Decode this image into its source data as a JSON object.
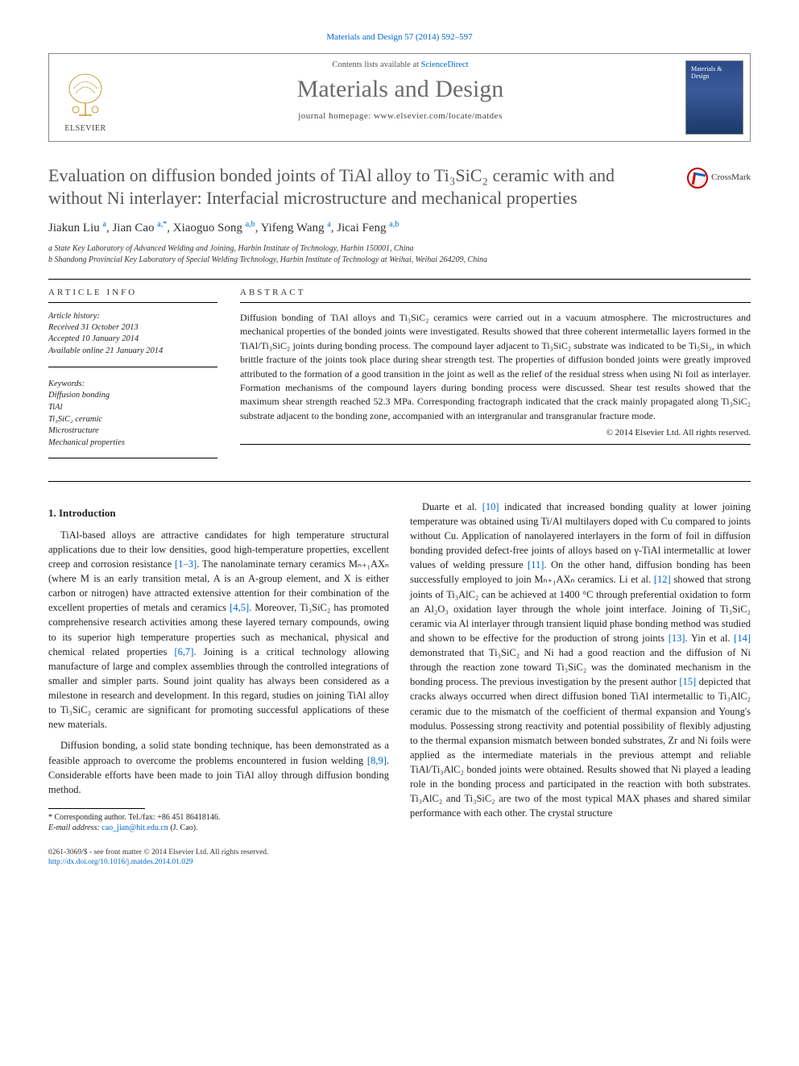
{
  "citation": "Materials and Design 57 (2014) 592–597",
  "header": {
    "contents_prefix": "Contents lists available at ",
    "contents_link": "ScienceDirect",
    "journal": "Materials and Design",
    "homepage_prefix": "journal homepage: ",
    "homepage": "www.elsevier.com/locate/matdes",
    "publisher_label": "ELSEVIER",
    "cover_label": "Materials & Design"
  },
  "crossmark": "CrossMark",
  "title": "Evaluation on diffusion bonded joints of TiAl alloy to Ti₃SiC₂ ceramic with and without Ni interlayer: Interfacial microstructure and mechanical properties",
  "authors_html": "Jiakun Liu <sup>a</sup>, Jian Cao <sup>a,*</sup>, Xiaoguo Song <sup>a,b</sup>, Yifeng Wang <sup>a</sup>, Jicai Feng <sup>a,b</sup>",
  "affiliations": [
    "a State Key Laboratory of Advanced Welding and Joining, Harbin Institute of Technology, Harbin 150001, China",
    "b Shandong Provincial Key Laboratory of Special Welding Technology, Harbin Institute of Technology at Weihai, Weihai 264209, China"
  ],
  "info_head": "ARTICLE INFO",
  "abstract_head": "ABSTRACT",
  "history": {
    "label": "Article history:",
    "received": "Received 31 October 2013",
    "accepted": "Accepted 10 January 2014",
    "online": "Available online 21 January 2014"
  },
  "keywords": {
    "label": "Keywords:",
    "items": [
      "Diffusion bonding",
      "TiAl",
      "Ti₃SiC₂ ceramic",
      "Microstructure",
      "Mechanical properties"
    ]
  },
  "abstract": "Diffusion bonding of TiAl alloys and Ti₃SiC₂ ceramics were carried out in a vacuum atmosphere. The microstructures and mechanical properties of the bonded joints were investigated. Results showed that three coherent intermetallic layers formed in the TiAl/Ti₃SiC₂ joints during bonding process. The compound layer adjacent to Ti₃SiC₂ substrate was indicated to be Ti₅Si₃, in which brittle fracture of the joints took place during shear strength test. The properties of diffusion bonded joints were greatly improved attributed to the formation of a good transition in the joint as well as the relief of the residual stress when using Ni foil as interlayer. Formation mechanisms of the compound layers during bonding process were discussed. Shear test results showed that the maximum shear strength reached 52.3 MPa. Corresponding fractograph indicated that the crack mainly propagated along Ti₃SiC₂ substrate adjacent to the bonding zone, accompanied with an intergranular and transgranular fracture mode.",
  "copyright": "© 2014 Elsevier Ltd. All rights reserved.",
  "section1": {
    "heading": "1. Introduction",
    "p1": "TiAl-based alloys are attractive candidates for high temperature structural applications due to their low densities, good high-temperature properties, excellent creep and corrosion resistance [1–3]. The nanolaminate ternary ceramics Mₙ₊₁AXₙ (where M is an early transition metal, A is an A-group element, and X is either carbon or nitrogen) have attracted extensive attention for their combination of the excellent properties of metals and ceramics [4,5]. Moreover, Ti₃SiC₂ has promoted comprehensive research activities among these layered ternary compounds, owing to its superior high temperature properties such as mechanical, physical and chemical related properties [6,7]. Joining is a critical technology allowing manufacture of large and complex assemblies through the controlled integrations of smaller and simpler parts. Sound joint quality has always been considered as a milestone in research and development. In this regard, studies on joining TiAl alloy to Ti₃SiC₂ ceramic are significant for promoting successful applications of these new materials.",
    "p2": "Diffusion bonding, a solid state bonding technique, has been demonstrated as a feasible approach to overcome the problems encountered in fusion welding [8,9]. Considerable efforts have been made to join TiAl alloy through diffusion bonding method.",
    "p3": "Duarte et al. [10] indicated that increased bonding quality at lower joining temperature was obtained using Ti/Al multilayers doped with Cu compared to joints without Cu. Application of nanolayered interlayers in the form of foil in diffusion bonding provided defect-free joints of alloys based on γ-TiAl intermetallic at lower values of welding pressure [11]. On the other hand, diffusion bonding has been successfully employed to join Mₙ₊₁AXₙ ceramics. Li et al. [12] showed that strong joints of Ti₃AlC₂ can be achieved at 1400 °C through preferential oxidation to form an Al₂O₃ oxidation layer through the whole joint interface. Joining of Ti₃SiC₂ ceramic via Al interlayer through transient liquid phase bonding method was studied and shown to be effective for the production of strong joints [13]. Yin et al. [14] demonstrated that Ti₃SiC₂ and Ni had a good reaction and the diffusion of Ni through the reaction zone toward Ti₃SiC₂ was the dominated mechanism in the bonding process. The previous investigation by the present author [15] depicted that cracks always occurred when direct diffusion boned TiAl intermetallic to Ti₃AlC₂ ceramic due to the mismatch of the coefficient of thermal expansion and Young's modulus. Possessing strong reactivity and potential possibility of flexibly adjusting to the thermal expansion mismatch between bonded substrates, Zr and Ni foils were applied as the intermediate materials in the previous attempt and reliable TiAl/Ti₃AlC₂ bonded joints were obtained. Results showed that Ni played a leading role in the bonding process and participated in the reaction with both substrates. Ti₃AlC₂ and Ti₃SiC₂ are two of the most typical MAX phases and shared similar performance with each other. The crystal structure"
  },
  "footnote": {
    "corr": "* Corresponding author. Tel./fax: +86 451 86418146.",
    "email_label": "E-mail address:",
    "email": "cao_jian@hit.edu.cn",
    "email_who": "(J. Cao)."
  },
  "footer": {
    "line1": "0261-3069/$ - see front matter © 2014 Elsevier Ltd. All rights reserved.",
    "doi": "http://dx.doi.org/10.1016/j.matdes.2014.01.029"
  },
  "colors": {
    "link": "#0066cc",
    "title_gray": "#555555",
    "journal_gray": "#6b6b6b"
  }
}
